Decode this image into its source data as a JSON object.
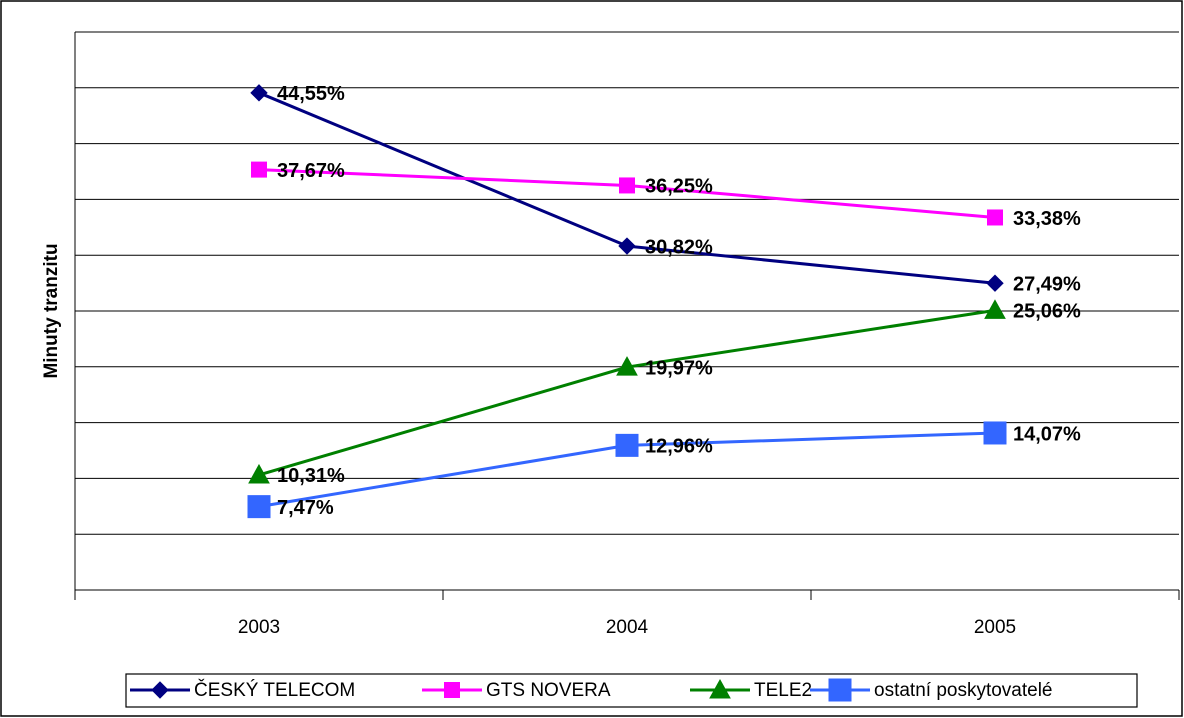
{
  "chart_data": {
    "type": "line",
    "y_label": "Minuty tranzitu",
    "categories": [
      "2003",
      "2004",
      "2005"
    ],
    "ylim": [
      0,
      50
    ],
    "yticks": [
      0,
      5,
      10,
      15,
      20,
      25,
      30,
      35,
      40,
      45,
      50
    ],
    "grid": true,
    "series": [
      {
        "name": "ČESKÝ TELECOM",
        "color": "#000080",
        "marker": "diamond",
        "values": [
          44.55,
          30.82,
          27.49
        ],
        "value_labels": [
          "44,55%",
          "30,82%",
          "27,49%"
        ]
      },
      {
        "name": "GTS NOVERA",
        "color": "#FF00FF",
        "marker": "square",
        "values": [
          37.67,
          36.25,
          33.38
        ],
        "value_labels": [
          "37,67%",
          "36,25%",
          "33,38%"
        ]
      },
      {
        "name": "TELE2",
        "color": "#008000",
        "marker": "triangle",
        "values": [
          10.31,
          19.97,
          25.06
        ],
        "value_labels": [
          "10,31%",
          "19,97%",
          "25,06%"
        ]
      },
      {
        "name": "ostatní poskytovatelé",
        "color": "#3366FF",
        "marker": "bigsquare",
        "values": [
          7.47,
          12.96,
          14.07
        ],
        "value_labels": [
          "7,47%",
          "12,96%",
          "14,07%"
        ]
      }
    ]
  }
}
